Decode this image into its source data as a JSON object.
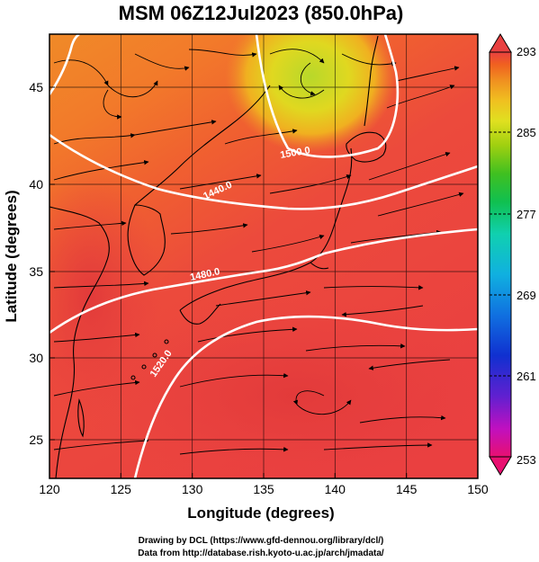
{
  "title": "MSM 06Z12Jul2023 (850.0hPa)",
  "x_axis": {
    "label": "Longitude (degrees)",
    "ticks": [
      "120",
      "125",
      "130",
      "135",
      "140",
      "145",
      "150"
    ]
  },
  "y_axis": {
    "label": "Latitude  (degrees)",
    "ticks": [
      "25",
      "30",
      "35",
      "40",
      "45"
    ]
  },
  "colorbar": {
    "ticks": [
      "293",
      "285",
      "277",
      "269",
      "261",
      "253"
    ],
    "colors": [
      "#e81070",
      "#c010c0",
      "#6020d0",
      "#1030d0",
      "#1070e0",
      "#10b0e0",
      "#10d0b0",
      "#10c050",
      "#40c020",
      "#a0d010",
      "#e0e020",
      "#f0c020",
      "#f09020",
      "#f06020",
      "#e84040"
    ]
  },
  "contours": {
    "labels": [
      "1500.0",
      "1440.0",
      "1480.0",
      "1520.0"
    ]
  },
  "credits": {
    "line1": "Drawing by DCL (https://www.gfd-dennou.org/library/dcl/)",
    "line2": "Data from http://database.rish.kyoto-u.ac.jp/arch/jmadata/"
  },
  "map_extent": {
    "lon": [
      120,
      150
    ],
    "lat": [
      22.4,
      47.6
    ]
  }
}
